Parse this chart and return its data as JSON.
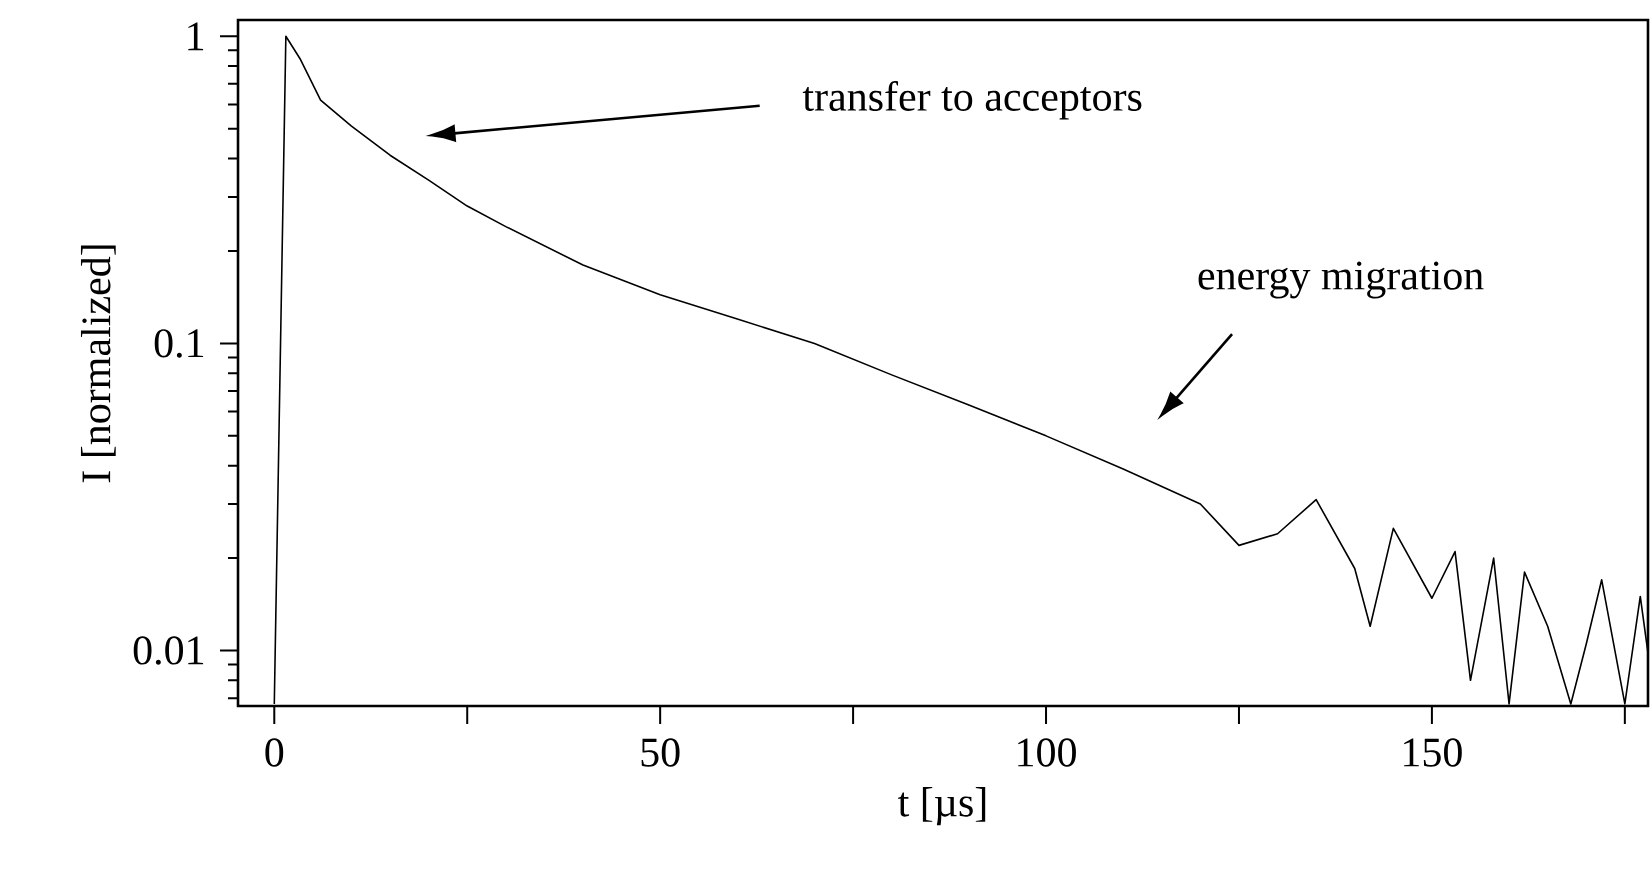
{
  "chart_data": {
    "type": "line",
    "xlabel": "t [µs]",
    "ylabel": "I [normalized]",
    "log": "y",
    "xlim": [
      -4.7,
      178
    ],
    "ylim": [
      0.0066,
      1.13
    ],
    "xticks": [
      0,
      {
        "value": 25,
        "label": null
      },
      50,
      {
        "value": 75,
        "label": null
      },
      100,
      {
        "value": 125,
        "label": null
      },
      150,
      {
        "value": 175,
        "label": null
      }
    ],
    "yticks": [
      0.01,
      0.1,
      1
    ],
    "annotations": [
      "transfer to acceptors",
      "energy migration"
    ],
    "series": [
      {
        "color": "#000000",
        "x": [
          0,
          1.5,
          3.4,
          6,
          10,
          15,
          20,
          25,
          30,
          40,
          50,
          60,
          70,
          80,
          90,
          100,
          110,
          120,
          125,
          130,
          135,
          140,
          142,
          145,
          150,
          153,
          155,
          158,
          160,
          162,
          165,
          168,
          170,
          172,
          175,
          177,
          178
        ],
        "values": [
          0.0067,
          1.0,
          0.84,
          0.62,
          0.51,
          0.41,
          0.34,
          0.28,
          0.24,
          0.18,
          0.144,
          0.12,
          0.1,
          0.079,
          0.063,
          0.05,
          0.039,
          0.03,
          0.022,
          0.024,
          0.031,
          0.0185,
          0.012,
          0.025,
          0.0148,
          0.021,
          0.008,
          0.02,
          0.0067,
          0.018,
          0.012,
          0.0067,
          0.0105,
          0.017,
          0.0067,
          0.015,
          0.0098
        ]
      }
    ]
  }
}
